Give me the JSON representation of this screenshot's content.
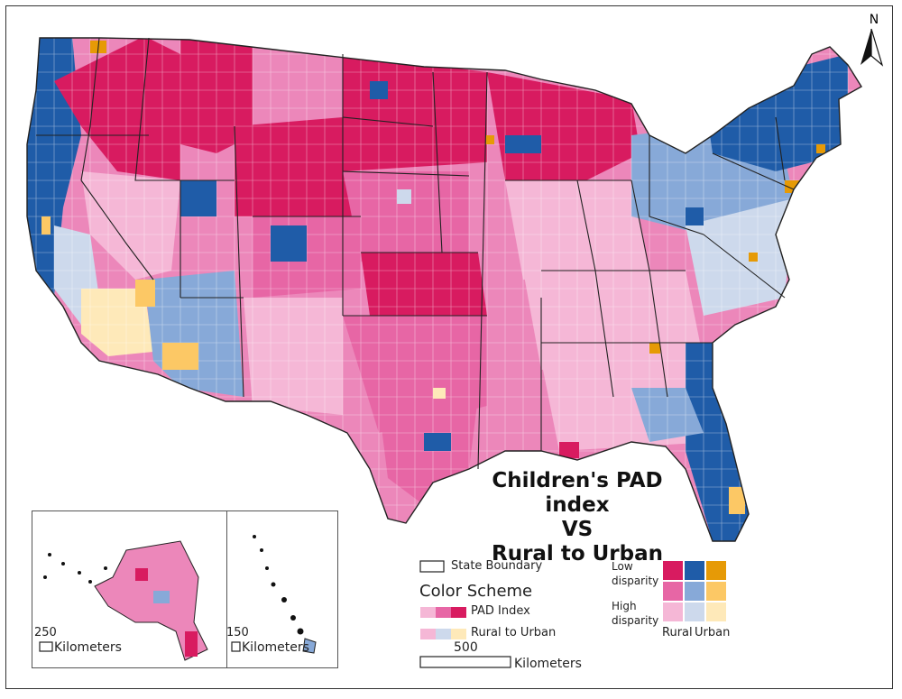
{
  "title": {
    "line1": "Children's PAD index",
    "line2": "VS",
    "line3": "Rural to Urban"
  },
  "north_arrow": {
    "label": "N"
  },
  "insets": {
    "alaska": {
      "scale_value": "250",
      "scale_unit": "Kilometers"
    },
    "hawaii": {
      "scale_value": "150",
      "scale_unit": "Kilometers"
    }
  },
  "legend": {
    "state_boundary": "State Boundary",
    "color_scheme_heading": "Color Scheme",
    "pad_index": "PAD Index",
    "rural_to_urban": "Rural to Urban",
    "low_disparity": "Low disparity",
    "high_disparity": "High disparity",
    "rural": "Rural",
    "urban": "Urban",
    "scale_value": "500",
    "scale_unit": "Kilometers"
  },
  "colors": {
    "pink_dark": "#d81b60",
    "pink_mid": "#e766a5",
    "pink_light": "#f5b7d6",
    "blue_dark": "#1f5ca8",
    "blue_mid": "#87a9d8",
    "blue_light": "#cdd9ec",
    "orange_dark": "#e69a06",
    "orange_mid": "#fcc865",
    "orange_light": "#fee9b9"
  }
}
